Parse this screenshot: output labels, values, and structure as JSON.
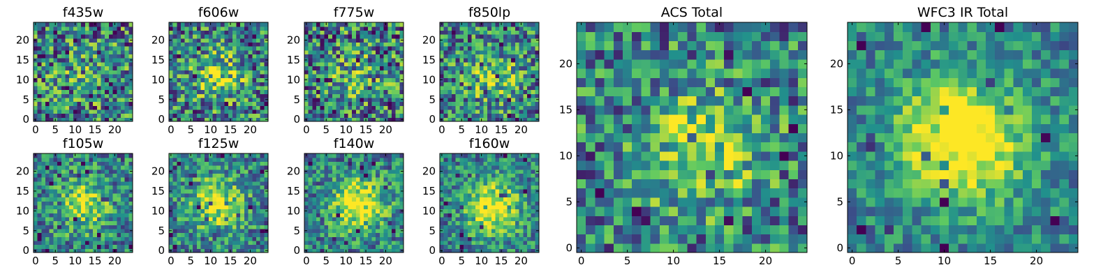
{
  "figure": {
    "colormap": "viridis",
    "colormap_stops": [
      "#440154",
      "#3b528b",
      "#21918c",
      "#5ec962",
      "#fde725"
    ],
    "background": "#ffffff"
  },
  "chart_data": [
    {
      "type": "heatmap",
      "title": "f435w",
      "grid_size": 25,
      "x_ticks": [
        "0",
        "5",
        "10",
        "15",
        "20"
      ],
      "y_ticks": [
        "0",
        "5",
        "10",
        "15",
        "20"
      ],
      "xlim": [
        -0.5,
        24.5
      ],
      "ylim": [
        -0.5,
        24.5
      ],
      "center": [
        12,
        11
      ],
      "signal": 0.12,
      "noise": 0.55,
      "seed": 11
    },
    {
      "type": "heatmap",
      "title": "f606w",
      "grid_size": 25,
      "x_ticks": [
        "0",
        "5",
        "10",
        "15",
        "20"
      ],
      "y_ticks": [
        "0",
        "5",
        "10",
        "15",
        "20"
      ],
      "xlim": [
        -0.5,
        24.5
      ],
      "ylim": [
        -0.5,
        24.5
      ],
      "center": [
        12,
        11
      ],
      "signal": 0.35,
      "noise": 0.5,
      "seed": 22
    },
    {
      "type": "heatmap",
      "title": "f775w",
      "grid_size": 25,
      "x_ticks": [
        "0",
        "5",
        "10",
        "15",
        "20"
      ],
      "y_ticks": [
        "0",
        "5",
        "10",
        "15",
        "20"
      ],
      "xlim": [
        -0.5,
        24.5
      ],
      "ylim": [
        -0.5,
        24.5
      ],
      "center": [
        12,
        11
      ],
      "signal": 0.18,
      "noise": 0.55,
      "seed": 33
    },
    {
      "type": "heatmap",
      "title": "f850lp",
      "grid_size": 25,
      "x_ticks": [
        "0",
        "5",
        "10",
        "15",
        "20"
      ],
      "y_ticks": [
        "0",
        "5",
        "10",
        "15",
        "20"
      ],
      "xlim": [
        -0.5,
        24.5
      ],
      "ylim": [
        -0.5,
        24.5
      ],
      "center": [
        13,
        11
      ],
      "signal": 0.3,
      "noise": 0.5,
      "seed": 44
    },
    {
      "type": "heatmap",
      "title": "f105w",
      "grid_size": 25,
      "x_ticks": [
        "0",
        "5",
        "10",
        "15",
        "20"
      ],
      "y_ticks": [
        "0",
        "5",
        "10",
        "15",
        "20"
      ],
      "xlim": [
        -0.5,
        24.5
      ],
      "ylim": [
        -0.5,
        24.5
      ],
      "center": [
        12,
        12
      ],
      "signal": 0.45,
      "noise": 0.4,
      "seed": 55
    },
    {
      "type": "heatmap",
      "title": "f125w",
      "grid_size": 25,
      "x_ticks": [
        "0",
        "5",
        "10",
        "15",
        "20"
      ],
      "y_ticks": [
        "0",
        "5",
        "10",
        "15",
        "20"
      ],
      "xlim": [
        -0.5,
        24.5
      ],
      "ylim": [
        -0.5,
        24.5
      ],
      "center": [
        12,
        12
      ],
      "signal": 0.45,
      "noise": 0.4,
      "seed": 66
    },
    {
      "type": "heatmap",
      "title": "f140w",
      "grid_size": 25,
      "x_ticks": [
        "0",
        "5",
        "10",
        "15",
        "20"
      ],
      "y_ticks": [
        "0",
        "5",
        "10",
        "15",
        "20"
      ],
      "xlim": [
        -0.5,
        24.5
      ],
      "ylim": [
        -0.5,
        24.5
      ],
      "center": [
        13,
        12
      ],
      "signal": 0.6,
      "noise": 0.38,
      "seed": 77
    },
    {
      "type": "heatmap",
      "title": "f160w",
      "grid_size": 25,
      "x_ticks": [
        "0",
        "5",
        "10",
        "15",
        "20"
      ],
      "y_ticks": [
        "0",
        "5",
        "10",
        "15",
        "20"
      ],
      "xlim": [
        -0.5,
        24.5
      ],
      "ylim": [
        -0.5,
        24.5
      ],
      "center": [
        13,
        11
      ],
      "signal": 0.6,
      "noise": 0.35,
      "seed": 88
    },
    {
      "type": "heatmap",
      "title": "ACS Total",
      "grid_size": 25,
      "x_ticks": [
        "0",
        "5",
        "10",
        "15",
        "20"
      ],
      "y_ticks": [
        "0",
        "5",
        "10",
        "15",
        "20"
      ],
      "xlim": [
        -0.5,
        24.5
      ],
      "ylim": [
        -0.5,
        24.5
      ],
      "center": [
        13,
        11
      ],
      "signal": 0.4,
      "noise": 0.45,
      "seed": 99
    },
    {
      "type": "heatmap",
      "title": "WFC3 IR Total",
      "grid_size": 25,
      "x_ticks": [
        "0",
        "5",
        "10",
        "15",
        "20"
      ],
      "y_ticks": [
        "0",
        "5",
        "10",
        "15",
        "20"
      ],
      "xlim": [
        -0.5,
        24.5
      ],
      "ylim": [
        -0.5,
        24.5
      ],
      "center": [
        12,
        12
      ],
      "signal": 0.75,
      "noise": 0.28,
      "seed": 111
    }
  ]
}
